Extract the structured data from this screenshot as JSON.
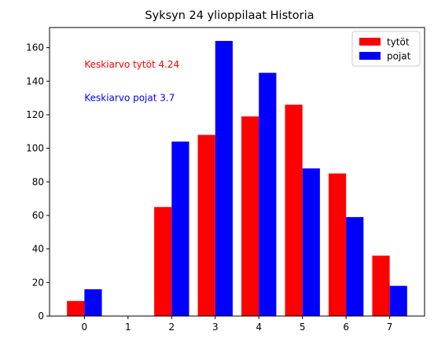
{
  "chart_data": {
    "type": "bar",
    "title": "Syksyn 24 ylioppilaat Historia",
    "xlabel": "",
    "ylabel": "",
    "categories": [
      "0",
      "1",
      "2",
      "3",
      "4",
      "5",
      "6",
      "7"
    ],
    "x": [
      0,
      1,
      2,
      3,
      4,
      5,
      6,
      7
    ],
    "series": [
      {
        "name": "tytöt",
        "color": "#ff0000",
        "values": [
          9,
          0,
          65,
          108,
          119,
          126,
          85,
          36
        ]
      },
      {
        "name": "pojat",
        "color": "#0000ff",
        "values": [
          16,
          0,
          104,
          164,
          145,
          88,
          59,
          18
        ]
      }
    ],
    "ylim": [
      0,
      172
    ],
    "yticks": [
      0,
      20,
      40,
      60,
      80,
      100,
      120,
      140,
      160
    ],
    "xlim": [
      -0.8,
      7.8
    ],
    "grid": false,
    "legend": "top-right",
    "annotations": [
      {
        "text": "Keskiarvo tytöt 4.24",
        "color": "#ff0000",
        "x": 0,
        "y": 150
      },
      {
        "text": "Keskiarvo pojat 3.7",
        "color": "#0000ff",
        "x": 0,
        "y": 130
      }
    ]
  }
}
